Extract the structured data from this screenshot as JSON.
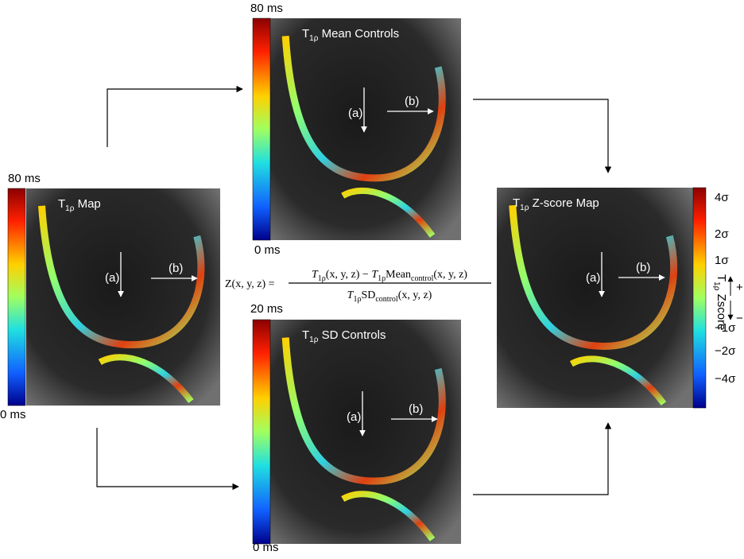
{
  "panels": [
    {
      "title": {
        "symbol": "T",
        "subscript": "1ρ",
        "text": " Map"
      },
      "scale_max": "80 ms",
      "scale_min": "0 ms",
      "arrow_a": "(a)",
      "arrow_b": "(b)"
    },
    {
      "title": {
        "symbol": "T",
        "subscript": "1ρ",
        "text": " Mean Controls"
      },
      "scale_max": "80 ms",
      "scale_min": "0 ms",
      "arrow_a": "(a)",
      "arrow_b": "(b)"
    },
    {
      "title": {
        "symbol": "T",
        "subscript": "1ρ",
        "text": " SD Controls"
      },
      "scale_max": "20 ms",
      "scale_min": "0 ms",
      "arrow_a": "(a)",
      "arrow_b": "(b)"
    },
    {
      "title": {
        "symbol": "T",
        "subscript": "1ρ",
        "text": " Z-score Map"
      },
      "arrow_a": "(a)",
      "arrow_b": "(b)",
      "colorbar_labels": [
        "4σ",
        "2σ",
        "1σ",
        "−1σ",
        "−2σ",
        "−4σ"
      ],
      "axis_label": {
        "symbol": "T",
        "subscript": "1ρ",
        "text": " Zscore"
      },
      "plus": "+",
      "minus": "−"
    }
  ],
  "formula": {
    "lhs": "Z(x, y, z) =",
    "numerator": [
      {
        "t": "T"
      },
      {
        "sub": "1ρ"
      },
      {
        "t": "(x, y, z) − "
      },
      {
        "t": "T"
      },
      {
        "sub": "1ρ"
      },
      {
        "t": "Mean"
      },
      {
        "sub": "control"
      },
      {
        "t": "(x, y, z)"
      }
    ],
    "denominator": [
      {
        "t": "T"
      },
      {
        "sub": "1ρ"
      },
      {
        "t": "SD"
      },
      {
        "sub": "control"
      },
      {
        "t": "(x, y, z)"
      }
    ]
  }
}
